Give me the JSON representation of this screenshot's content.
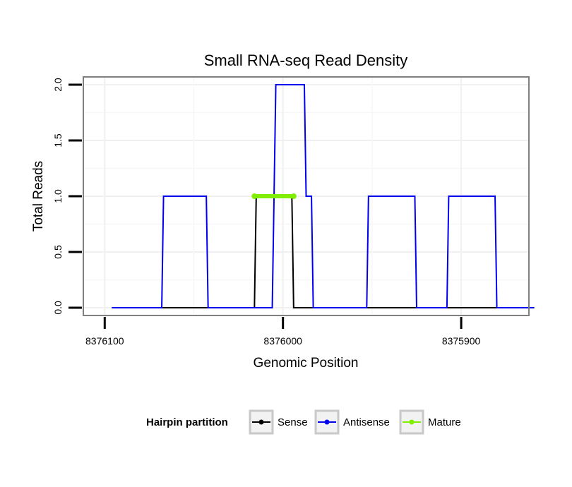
{
  "chart_data": {
    "type": "line",
    "title": "Small RNA-seq Read Density",
    "xlabel": "Genomic Position",
    "ylabel": "Total Reads",
    "x_reversed": true,
    "xlim": [
      8376112,
      8375862
    ],
    "ylim": [
      -0.07,
      2.07
    ],
    "x_ticks": [
      8376100,
      8376000,
      8375900
    ],
    "x_tick_labels": [
      "8376100",
      "8376000",
      "8375900"
    ],
    "y_ticks": [
      0.0,
      0.5,
      1.0,
      1.5,
      2.0
    ],
    "y_tick_labels": [
      "0.0",
      "0.5",
      "1.0",
      "1.5",
      "2.0"
    ],
    "grid": true,
    "legend": {
      "title": "Hairpin partition",
      "placement": "bottom",
      "entries": [
        "Sense",
        "Antisense",
        "Mature"
      ]
    },
    "series": [
      {
        "name": "Sense",
        "color": "#000000",
        "x": [
          8376096,
          8376016,
          8376015,
          8375995,
          8375994,
          8375859
        ],
        "y": [
          0,
          0,
          1,
          1,
          0,
          0
        ]
      },
      {
        "name": "Antisense",
        "color": "#0000ee",
        "x": [
          8376096,
          8376068,
          8376067,
          8376043,
          8376042,
          8376006,
          8376005,
          8376004,
          8375988,
          8375987,
          8375984,
          8375983,
          8375982,
          8375953,
          8375952,
          8375926,
          8375925,
          8375908,
          8375907,
          8375881,
          8375880,
          8375859
        ],
        "y": [
          0,
          0,
          1,
          1,
          0,
          0,
          1,
          2,
          2,
          1,
          1,
          0,
          0,
          0,
          1,
          1,
          0,
          0,
          1,
          1,
          0,
          0
        ]
      },
      {
        "name": "Mature",
        "color": "#7fee00",
        "x": [
          8376016,
          8375994
        ],
        "y": [
          1,
          1
        ]
      }
    ]
  }
}
